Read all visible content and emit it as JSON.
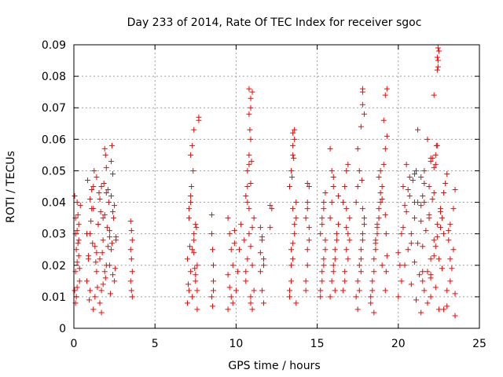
{
  "chart_data": {
    "type": "scatter",
    "title": "Day 233 of 2014, Rate Of TEC Index for receiver sgoc",
    "xlabel": "GPS time / hours",
    "ylabel": "ROTI / TECUs",
    "xlim": [
      0,
      25
    ],
    "ylim": [
      0,
      0.09
    ],
    "xticks": [
      0,
      5,
      10,
      15,
      20,
      25
    ],
    "yticks": [
      0,
      0.01,
      0.02,
      0.03,
      0.04,
      0.05,
      0.06,
      0.07,
      0.08,
      0.09
    ],
    "xtick_labels": [
      "0",
      "5",
      "10",
      "15",
      "20",
      "25"
    ],
    "ytick_labels": [
      "0",
      "0.01",
      "0.02",
      "0.03",
      "0.04",
      "0.05",
      "0.06",
      "0.07",
      "0.08",
      "0.09"
    ],
    "grid": true,
    "marker": "+",
    "color": "#ff0000",
    "series": [
      {
        "x": [
          0.05,
          0.1,
          0.15,
          0.2,
          0.25,
          0.3,
          0.35,
          0.1,
          0.2,
          0.3,
          0.4,
          0.05,
          0.15,
          0.25,
          0.35,
          0.1,
          0.2,
          0.3,
          0.2,
          0.1,
          0.8,
          0.9,
          1.0,
          1.1,
          1.2,
          1.3,
          1.4,
          1.5,
          1.6,
          1.7,
          1.8,
          1.9,
          2.0,
          2.1,
          2.2,
          2.3,
          2.4,
          2.5,
          2.6,
          0.85,
          0.95,
          1.05,
          1.15,
          1.25,
          1.35,
          1.45,
          1.55,
          1.65,
          1.75,
          1.85,
          1.95,
          2.05,
          2.15,
          2.25,
          2.35,
          2.45,
          2.55,
          1.0,
          1.2,
          1.4,
          1.6,
          1.8,
          2.0,
          2.2,
          2.4,
          0.9,
          1.1,
          1.3,
          1.5,
          1.7,
          1.9,
          2.1,
          2.3,
          2.5,
          0.8,
          1.0,
          1.2,
          1.4,
          1.6,
          1.8,
          2.0,
          2.2,
          2.4,
          2.6,
          1.9,
          2.3,
          1.7,
          1.95,
          2.35,
          3.5,
          3.55,
          3.6,
          3.5,
          3.55,
          3.6,
          3.5,
          3.55,
          3.6,
          7.0,
          7.1,
          7.2,
          7.3,
          7.4,
          7.5,
          7.6,
          7.0,
          7.1,
          7.2,
          7.3,
          7.4,
          7.5,
          7.6,
          7.05,
          7.15,
          7.25,
          7.35,
          7.45,
          7.55,
          7.1,
          7.2,
          7.3,
          7.4,
          7.5,
          7.2,
          7.4,
          7.6,
          7.7,
          7.7,
          8.5,
          8.5,
          8.55,
          8.6,
          8.6,
          8.5,
          8.55,
          8.6,
          9.5,
          9.6,
          9.7,
          9.8,
          9.5,
          9.6,
          9.7,
          9.8,
          9.5,
          9.9,
          9.9,
          10.0,
          10.1,
          10.2,
          10.3,
          10.5,
          10.6,
          10.7,
          10.8,
          10.9,
          11.0,
          11.1,
          10.6,
          10.7,
          10.8,
          10.9,
          11.0,
          11.1,
          10.6,
          10.7,
          10.8,
          10.9,
          11.0,
          10.7,
          10.8,
          10.9,
          11.0,
          10.8,
          10.9,
          10.8,
          10.9,
          10.85,
          10.95,
          10.9,
          11.5,
          11.6,
          11.7,
          11.5,
          11.6,
          11.7,
          11.5,
          11.6,
          11.7,
          12.1,
          12.2,
          12.1,
          13.3,
          13.4,
          13.5,
          13.6,
          13.7,
          13.3,
          13.4,
          13.5,
          13.6,
          13.7,
          13.3,
          13.4,
          13.5,
          13.6,
          13.7,
          13.4,
          13.5,
          13.6,
          13.5,
          13.5,
          13.55,
          13.45,
          14.3,
          14.4,
          14.5,
          14.3,
          14.4,
          14.5,
          14.3,
          14.4,
          14.5,
          14.4,
          14.4,
          15.2,
          15.3,
          15.4,
          15.5,
          15.2,
          15.3,
          15.4,
          15.5,
          15.2,
          15.3,
          15.4,
          15.5,
          15.3,
          15.4,
          15.8,
          15.9,
          16.0,
          16.1,
          16.2,
          15.8,
          15.9,
          16.0,
          16.1,
          16.2,
          15.9,
          16.0,
          16.1,
          15.8,
          16.0,
          16.3,
          16.3,
          16.6,
          16.7,
          16.8,
          16.9,
          17.0,
          16.6,
          16.7,
          16.8,
          16.9,
          17.0,
          16.7,
          16.8,
          16.9,
          16.8,
          17.4,
          17.5,
          17.6,
          17.7,
          17.8,
          17.9,
          17.4,
          17.5,
          17.6,
          17.7,
          17.8,
          17.9,
          17.5,
          17.6,
          17.7,
          17.8,
          17.5,
          17.7,
          17.8,
          17.8,
          17.8,
          17.9,
          17.75,
          18.3,
          18.4,
          18.5,
          18.6,
          18.7,
          18.8,
          18.9,
          19.0,
          18.3,
          18.4,
          18.5,
          18.6,
          18.7,
          18.8,
          18.9,
          19.0,
          18.5,
          18.6,
          18.7,
          18.8,
          18.9,
          19.0,
          19.1,
          19.2,
          19.3,
          19.1,
          19.2,
          19.3,
          19.2,
          19.25,
          19.3,
          19.2,
          19.25,
          20.0,
          20.2,
          20.4,
          20.6,
          20.8,
          21.0,
          21.2,
          21.4,
          21.6,
          21.8,
          22.0,
          22.2,
          22.4,
          22.6,
          22.8,
          23.0,
          23.2,
          23.4,
          20.1,
          20.3,
          20.5,
          20.7,
          20.9,
          21.1,
          21.3,
          21.5,
          21.7,
          21.9,
          22.1,
          22.3,
          22.5,
          22.7,
          22.9,
          23.1,
          23.3,
          23.5,
          20.0,
          20.2,
          20.4,
          20.6,
          20.8,
          21.0,
          21.2,
          21.4,
          21.6,
          21.8,
          22.0,
          22.2,
          22.4,
          22.6,
          22.8,
          23.0,
          23.2,
          23.4,
          20.3,
          20.7,
          21.1,
          21.5,
          21.9,
          22.3,
          22.7,
          23.1,
          23.5,
          20.5,
          21.0,
          21.5,
          22.0,
          22.5,
          23.0,
          23.5,
          20.8,
          21.4,
          22.0,
          22.6,
          23.2,
          21.0,
          21.6,
          22.2,
          22.8,
          21.5,
          22.0,
          22.4,
          21.2,
          21.8,
          22.3,
          22.1,
          22.3,
          22.35,
          22.2,
          21.9,
          22.0,
          21.6,
          21.4,
          22.4,
          22.45,
          22.5,
          22.45,
          22.4,
          22.45,
          22.2
        ],
        "y": [
          0.012,
          0.018,
          0.025,
          0.031,
          0.036,
          0.028,
          0.015,
          0.008,
          0.021,
          0.033,
          0.039,
          0.042,
          0.01,
          0.027,
          0.019,
          0.035,
          0.04,
          0.023,
          0.013,
          0.03,
          0.015,
          0.022,
          0.03,
          0.038,
          0.045,
          0.026,
          0.018,
          0.033,
          0.041,
          0.012,
          0.028,
          0.036,
          0.02,
          0.044,
          0.031,
          0.025,
          0.017,
          0.039,
          0.029,
          0.047,
          0.009,
          0.034,
          0.027,
          0.05,
          0.021,
          0.013,
          0.043,
          0.037,
          0.024,
          0.046,
          0.016,
          0.032,
          0.04,
          0.011,
          0.027,
          0.035,
          0.019,
          0.041,
          0.006,
          0.048,
          0.022,
          0.014,
          0.051,
          0.029,
          0.037,
          0.023,
          0.044,
          0.01,
          0.033,
          0.045,
          0.018,
          0.026,
          0.042,
          0.015,
          0.03,
          0.012,
          0.038,
          0.024,
          0.008,
          0.035,
          0.043,
          0.02,
          0.049,
          0.028,
          0.057,
          0.053,
          0.005,
          0.055,
          0.058,
          0.034,
          0.031,
          0.028,
          0.025,
          0.022,
          0.018,
          0.015,
          0.012,
          0.01,
          0.008,
          0.012,
          0.018,
          0.025,
          0.03,
          0.015,
          0.02,
          0.022,
          0.035,
          0.04,
          0.01,
          0.028,
          0.033,
          0.006,
          0.014,
          0.026,
          0.045,
          0.05,
          0.019,
          0.032,
          0.038,
          0.055,
          0.058,
          0.063,
          0.017,
          0.042,
          0.024,
          0.012,
          0.066,
          0.067,
          0.036,
          0.03,
          0.025,
          0.02,
          0.015,
          0.01,
          0.007,
          0.012,
          0.035,
          0.03,
          0.025,
          0.02,
          0.017,
          0.013,
          0.01,
          0.008,
          0.006,
          0.027,
          0.031,
          0.012,
          0.018,
          0.025,
          0.033,
          0.028,
          0.015,
          0.022,
          0.03,
          0.01,
          0.02,
          0.035,
          0.042,
          0.045,
          0.038,
          0.008,
          0.006,
          0.012,
          0.018,
          0.05,
          0.052,
          0.026,
          0.032,
          0.04,
          0.068,
          0.07,
          0.075,
          0.076,
          0.06,
          0.055,
          0.046,
          0.063,
          0.053,
          0.073,
          0.032,
          0.028,
          0.022,
          0.018,
          0.012,
          0.008,
          0.024,
          0.029,
          0.02,
          0.039,
          0.038,
          0.032,
          0.01,
          0.015,
          0.022,
          0.03,
          0.035,
          0.012,
          0.02,
          0.027,
          0.033,
          0.04,
          0.045,
          0.05,
          0.055,
          0.06,
          0.008,
          0.025,
          0.038,
          0.063,
          0.062,
          0.058,
          0.054,
          0.048,
          0.012,
          0.02,
          0.028,
          0.035,
          0.04,
          0.045,
          0.015,
          0.025,
          0.032,
          0.046,
          0.038,
          0.01,
          0.015,
          0.02,
          0.025,
          0.03,
          0.035,
          0.04,
          0.043,
          0.012,
          0.018,
          0.022,
          0.028,
          0.033,
          0.038,
          0.01,
          0.015,
          0.02,
          0.025,
          0.03,
          0.035,
          0.04,
          0.045,
          0.022,
          0.028,
          0.05,
          0.018,
          0.012,
          0.057,
          0.048,
          0.042,
          0.033,
          0.012,
          0.018,
          0.025,
          0.03,
          0.035,
          0.04,
          0.045,
          0.05,
          0.022,
          0.028,
          0.015,
          0.032,
          0.052,
          0.038,
          0.01,
          0.015,
          0.02,
          0.025,
          0.03,
          0.035,
          0.04,
          0.045,
          0.05,
          0.018,
          0.028,
          0.033,
          0.006,
          0.012,
          0.022,
          0.038,
          0.057,
          0.064,
          0.076,
          0.075,
          0.071,
          0.068,
          0.047,
          0.008,
          0.012,
          0.018,
          0.025,
          0.03,
          0.035,
          0.04,
          0.045,
          0.01,
          0.015,
          0.022,
          0.028,
          0.033,
          0.038,
          0.043,
          0.02,
          0.005,
          0.027,
          0.032,
          0.048,
          0.05,
          0.041,
          0.052,
          0.057,
          0.061,
          0.066,
          0.074,
          0.076,
          0.012,
          0.018,
          0.023,
          0.036,
          0.03,
          0.01,
          0.015,
          0.02,
          0.025,
          0.03,
          0.035,
          0.04,
          0.005,
          0.012,
          0.018,
          0.022,
          0.028,
          0.033,
          0.038,
          0.043,
          0.007,
          0.015,
          0.025,
          0.02,
          0.032,
          0.037,
          0.042,
          0.047,
          0.009,
          0.017,
          0.026,
          0.031,
          0.036,
          0.041,
          0.013,
          0.022,
          0.035,
          0.046,
          0.028,
          0.019,
          0.011,
          0.024,
          0.03,
          0.039,
          0.044,
          0.014,
          0.021,
          0.027,
          0.034,
          0.04,
          0.008,
          0.016,
          0.023,
          0.029,
          0.037,
          0.006,
          0.012,
          0.033,
          0.038,
          0.045,
          0.048,
          0.05,
          0.042,
          0.035,
          0.026,
          0.019,
          0.031,
          0.044,
          0.052,
          0.049,
          0.015,
          0.01,
          0.006,
          0.049,
          0.004,
          0.027,
          0.039,
          0.017,
          0.032,
          0.022,
          0.04,
          0.046,
          0.051,
          0.03,
          0.018,
          0.054,
          0.058,
          0.063,
          0.06,
          0.052,
          0.054,
          0.055,
          0.058,
          0.043,
          0.045,
          0.053,
          0.05,
          0.048,
          0.086,
          0.089,
          0.088,
          0.083,
          0.082,
          0.085,
          0.074
        ]
      }
    ]
  }
}
